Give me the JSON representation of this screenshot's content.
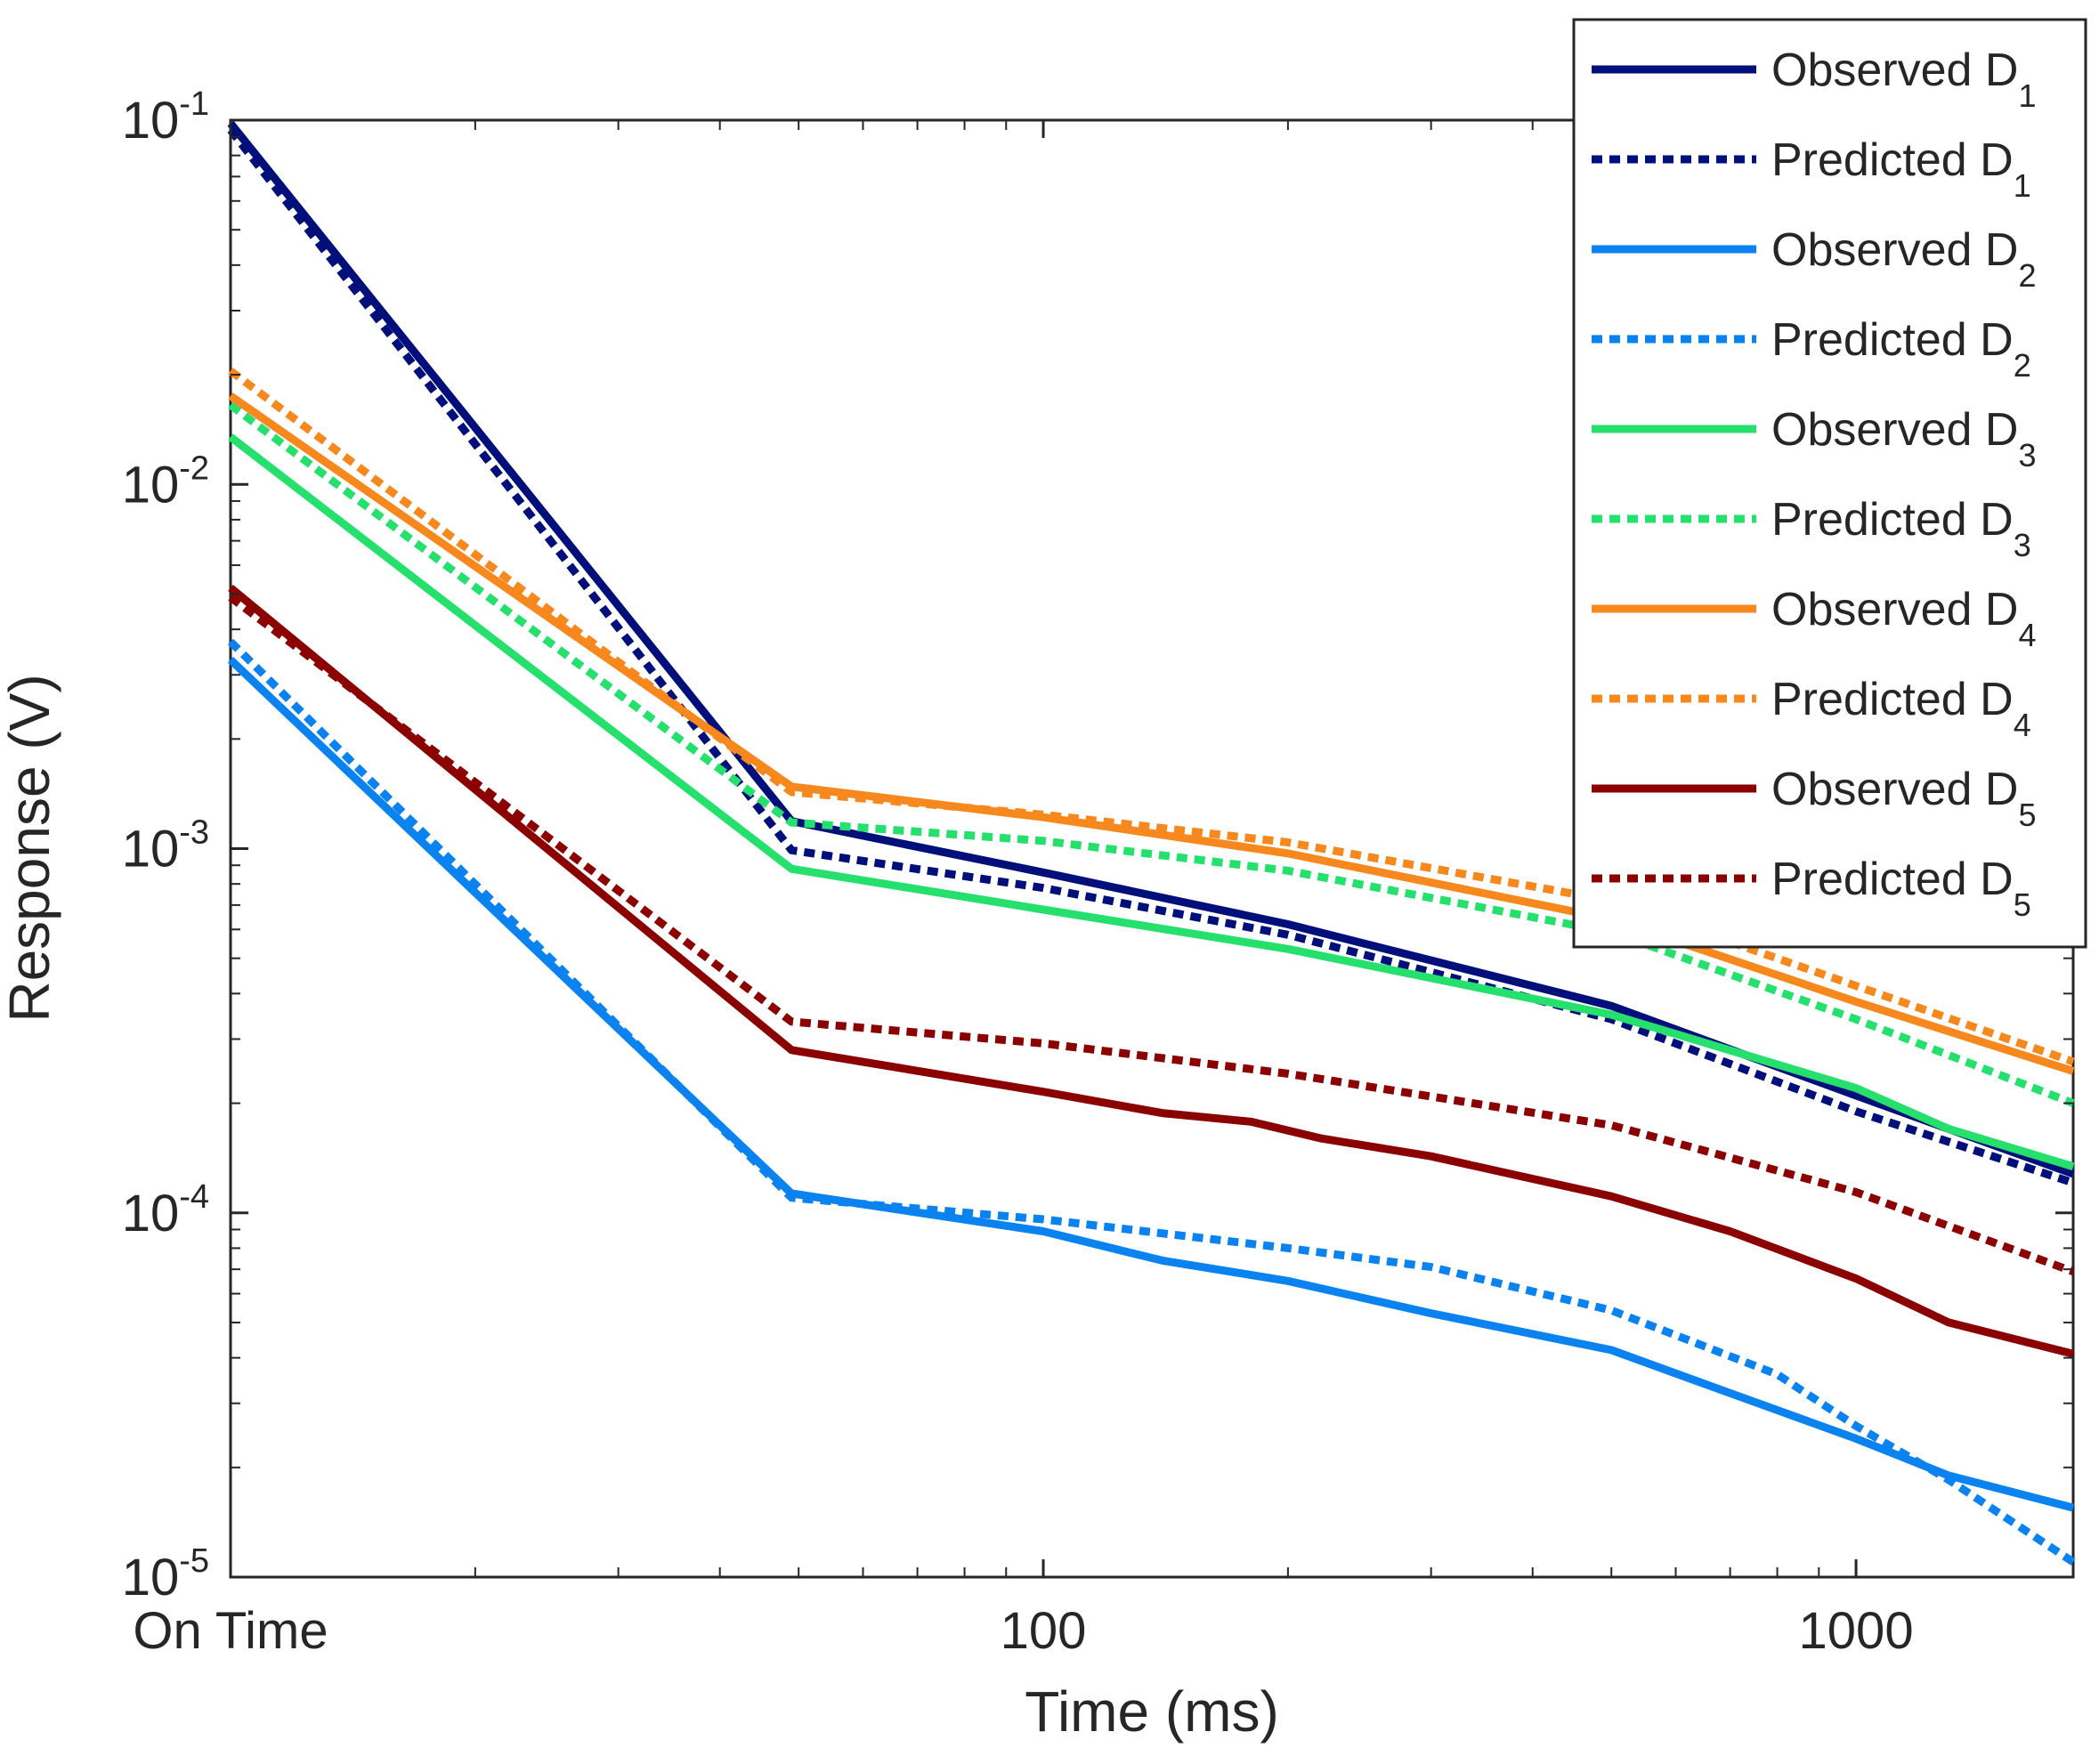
{
  "chart_data": {
    "type": "line",
    "title": "",
    "xlabel": "Time (ms)",
    "ylabel": "Response (V)",
    "x_scale": "log",
    "y_scale": "log",
    "xlim": [
      10,
      1850
    ],
    "ylim": [
      1e-05,
      0.1
    ],
    "grid": false,
    "legend_position": "top-right",
    "x_ticks": [
      {
        "value": 10,
        "label": "On Time"
      },
      {
        "value": 100,
        "label": "100"
      },
      {
        "value": 1000,
        "label": "1000"
      }
    ],
    "y_ticks": [
      {
        "value": 0.1,
        "base": "10",
        "exp": "-1"
      },
      {
        "value": 0.01,
        "base": "10",
        "exp": "-2"
      },
      {
        "value": 0.001,
        "base": "10",
        "exp": "-3"
      },
      {
        "value": 0.0001,
        "base": "10",
        "exp": "-4"
      },
      {
        "value": 1e-05,
        "base": "10",
        "exp": "-5"
      }
    ],
    "series": [
      {
        "name": "Observed D",
        "sub": "1",
        "color": "#000f7a",
        "style": "solid",
        "points": [
          [
            10,
            0.098
          ],
          [
            49,
            0.00119
          ],
          [
            100,
            0.00086
          ],
          [
            200,
            0.00062
          ],
          [
            500,
            0.00037
          ],
          [
            1000,
            0.00021
          ],
          [
            1850,
            0.000128
          ]
        ]
      },
      {
        "name": "Predicted D",
        "sub": "1",
        "color": "#000f7a",
        "style": "dotted",
        "points": [
          [
            10,
            0.094
          ],
          [
            49,
            0.00099
          ],
          [
            100,
            0.00078
          ],
          [
            200,
            0.00058
          ],
          [
            500,
            0.00034
          ],
          [
            1000,
            0.00019
          ],
          [
            1850,
            0.000121
          ]
        ]
      },
      {
        "name": "Observed D",
        "sub": "2",
        "color": "#0a82f0",
        "style": "solid",
        "points": [
          [
            10,
            0.0033
          ],
          [
            49,
            0.000113
          ],
          [
            100,
            8.9e-05
          ],
          [
            140,
            7.4e-05
          ],
          [
            200,
            6.5e-05
          ],
          [
            300,
            5.3e-05
          ],
          [
            500,
            4.2e-05
          ],
          [
            700,
            3.2e-05
          ],
          [
            1000,
            2.4e-05
          ],
          [
            1300,
            1.9e-05
          ],
          [
            1850,
            1.55e-05
          ]
        ]
      },
      {
        "name": "Predicted D",
        "sub": "2",
        "color": "#0a82f0",
        "style": "dotted",
        "points": [
          [
            10,
            0.0037
          ],
          [
            49,
            0.00011
          ],
          [
            100,
            9.6e-05
          ],
          [
            200,
            8e-05
          ],
          [
            300,
            7.1e-05
          ],
          [
            500,
            5.4e-05
          ],
          [
            800,
            3.6e-05
          ],
          [
            1000,
            2.6e-05
          ],
          [
            1300,
            1.85e-05
          ],
          [
            1850,
            1.1e-05
          ]
        ]
      },
      {
        "name": "Observed D",
        "sub": "3",
        "color": "#26e06e",
        "style": "solid",
        "points": [
          [
            10,
            0.0135
          ],
          [
            49,
            0.00088
          ],
          [
            100,
            0.00068
          ],
          [
            200,
            0.00053
          ],
          [
            500,
            0.00035
          ],
          [
            1000,
            0.00022
          ],
          [
            1300,
            0.00017
          ],
          [
            1850,
            0.000134
          ]
        ]
      },
      {
        "name": "Predicted D",
        "sub": "3",
        "color": "#26e06e",
        "style": "dotted",
        "points": [
          [
            10,
            0.0165
          ],
          [
            49,
            0.00118
          ],
          [
            100,
            0.00105
          ],
          [
            200,
            0.00087
          ],
          [
            500,
            0.00059
          ],
          [
            1000,
            0.00034
          ],
          [
            1850,
            0.0002
          ]
        ]
      },
      {
        "name": "Observed D",
        "sub": "4",
        "color": "#f7881d",
        "style": "solid",
        "points": [
          [
            10,
            0.0175
          ],
          [
            49,
            0.00148
          ],
          [
            100,
            0.00122
          ],
          [
            200,
            0.00097
          ],
          [
            500,
            0.00064
          ],
          [
            1000,
            0.00038
          ],
          [
            1850,
            0.000245
          ]
        ]
      },
      {
        "name": "Predicted D",
        "sub": "4",
        "color": "#f7881d",
        "style": "dotted",
        "points": [
          [
            10,
            0.0205
          ],
          [
            49,
            0.00143
          ],
          [
            100,
            0.00124
          ],
          [
            200,
            0.00104
          ],
          [
            500,
            0.00072
          ],
          [
            1000,
            0.00042
          ],
          [
            1850,
            0.00026
          ]
        ]
      },
      {
        "name": "Observed D",
        "sub": "5",
        "color": "#8b0000",
        "style": "solid",
        "points": [
          [
            10,
            0.0052
          ],
          [
            49,
            0.00028
          ],
          [
            100,
            0.000215
          ],
          [
            140,
            0.000188
          ],
          [
            180,
            0.000178
          ],
          [
            220,
            0.00016
          ],
          [
            300,
            0.000143
          ],
          [
            500,
            0.000111
          ],
          [
            700,
            8.9e-05
          ],
          [
            1000,
            6.6e-05
          ],
          [
            1300,
            5e-05
          ],
          [
            1850,
            4.1e-05
          ]
        ]
      },
      {
        "name": "Predicted D",
        "sub": "5",
        "color": "#8b0000",
        "style": "dotted",
        "points": [
          [
            10,
            0.0049
          ],
          [
            49,
            0.000335
          ],
          [
            100,
            0.000292
          ],
          [
            200,
            0.000241
          ],
          [
            500,
            0.000174
          ],
          [
            1000,
            0.000114
          ],
          [
            1850,
            6.9e-05
          ]
        ]
      }
    ]
  }
}
